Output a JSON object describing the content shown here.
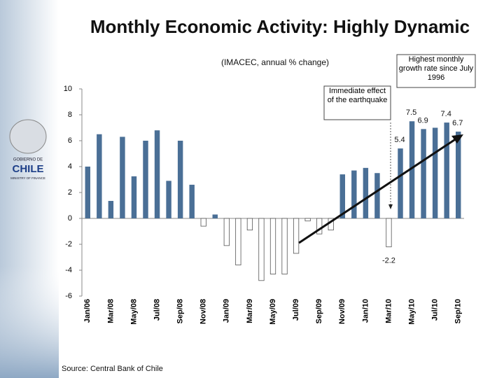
{
  "chart_data": {
    "type": "bar",
    "title": "Monthly Economic Activity: Highly Dynamic",
    "subtitle": "(IMACEC, annual % change)",
    "categories": [
      "Jan/06",
      null,
      "Mar/08",
      null,
      "May/08",
      null,
      "Jul/08",
      null,
      "Sep/08",
      null,
      "Nov/08",
      null,
      "Jan/09",
      null,
      "Mar/09",
      null,
      "May/09",
      null,
      "Jul/09",
      null,
      "Sep/09",
      null,
      "Nov/09",
      null,
      "Jan/10",
      null,
      "Mar/10",
      null,
      "May/10",
      null,
      "Jul/10",
      null,
      "Sep/10"
    ],
    "values": [
      4.0,
      6.5,
      1.35,
      6.3,
      3.25,
      6.0,
      6.8,
      2.9,
      6.0,
      2.6,
      -0.6,
      0.3,
      -2.1,
      -3.6,
      -0.9,
      -4.8,
      -4.3,
      -4.3,
      -2.7,
      -0.2,
      -1.2,
      -0.9,
      3.4,
      3.7,
      3.9,
      3.5,
      -2.2,
      5.4,
      7.5,
      6.9,
      7.0,
      7.4,
      6.7
    ],
    "value_labels": [
      null,
      null,
      null,
      null,
      null,
      null,
      null,
      null,
      null,
      null,
      null,
      null,
      null,
      null,
      null,
      null,
      null,
      null,
      null,
      null,
      null,
      null,
      null,
      null,
      null,
      null,
      "-2.2",
      "5.4",
      "7.5",
      "6.9",
      null,
      "7.4",
      "6.7"
    ],
    "color": "#4a6f96",
    "negative_fill": "#ffffff",
    "negative_stroke": "#555555",
    "ylim": [
      -6,
      10
    ],
    "yticks": [
      -6,
      -4,
      -2,
      0,
      2,
      4,
      6,
      8,
      10
    ],
    "annotations": [
      "Immediate effect of the earthquake",
      "Highest monthly growth rate since July 1996"
    ],
    "source": "Source: Central Bank of Chile"
  },
  "logo": {
    "top": "GOBIERNO DE",
    "name": "CHILE",
    "bottom": "MINISTRY OF FINANCE"
  }
}
